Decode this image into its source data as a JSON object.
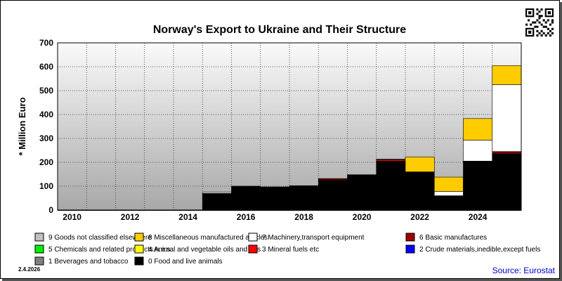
{
  "chart_data": {
    "type": "bar",
    "stacked": true,
    "title": "Norway's Export to Ukraine and Their Structure",
    "ylabel": "* Million Euro",
    "xlabel": "",
    "ylim": [
      0,
      700
    ],
    "yticks": [
      0,
      100,
      200,
      300,
      400,
      500,
      600,
      700
    ],
    "x_tick_labels": [
      "2010",
      "2012",
      "2014",
      "2016",
      "2018",
      "2020",
      "2022",
      "2024"
    ],
    "categories": [
      "2010",
      "2011",
      "2012",
      "2013",
      "2014",
      "2015",
      "2016",
      "2017",
      "2018",
      "2019",
      "2020",
      "2021",
      "2022",
      "2023",
      "2024",
      "2025"
    ],
    "series": [
      {
        "name": "0 Food and live animals",
        "color": "#000000",
        "values": [
          0,
          0,
          0,
          0,
          0,
          70,
          100,
          97,
          102,
          125,
          148,
          205,
          160,
          60,
          205,
          236
        ]
      },
      {
        "name": "3 Mineral fuels etc",
        "color": "#ff0000",
        "values": [
          0,
          0,
          0,
          0,
          0,
          0,
          0,
          0,
          0,
          3,
          0,
          5,
          0,
          0,
          0,
          4
        ]
      },
      {
        "name": "6 Basic manufactures",
        "color": "#a00000",
        "values": [
          0,
          0,
          0,
          0,
          0,
          0,
          0,
          0,
          0,
          4,
          0,
          3,
          0,
          0,
          0,
          5
        ]
      },
      {
        "name": "7 Machinery,transport equipment",
        "color": "#ffffff",
        "values": [
          0,
          0,
          0,
          0,
          0,
          5,
          0,
          0,
          0,
          0,
          0,
          0,
          0,
          18,
          88,
          280
        ]
      },
      {
        "name": "8 Miscellaneous manufactured articles",
        "color": "#ffcc00",
        "values": [
          0,
          0,
          0,
          0,
          0,
          0,
          0,
          0,
          0,
          0,
          0,
          0,
          62,
          60,
          90,
          80
        ]
      }
    ],
    "legend": [
      {
        "label": "9 Goods not classified elsewhere",
        "color": "#c0c0c0"
      },
      {
        "label": "8 Miscellaneous manufactured articles",
        "color": "#ffcc00"
      },
      {
        "label": "7 Machinery,transport equipment",
        "color": "#ffffff"
      },
      {
        "label": "6 Basic manufactures",
        "color": "#a00000"
      },
      {
        "label": "5 Chemicals and related products,n.e.s.",
        "color": "#00ee00"
      },
      {
        "label": "4 Animal and vegetable oils and fats",
        "color": "#ffff00"
      },
      {
        "label": "3 Mineral fuels etc",
        "color": "#ff0000"
      },
      {
        "label": "2 Crude materials,inedible,except fuels",
        "color": "#0000ff"
      },
      {
        "label": "1 Beverages and tobacco",
        "color": "#808080"
      },
      {
        "label": "0 Food and live animals",
        "color": "#000000"
      }
    ],
    "grid": true,
    "legend_placement": "bottom"
  },
  "footer": {
    "date": "2.4.2026",
    "source": "Source: Eurostat"
  },
  "icons": {
    "qr": "qr-code-icon"
  }
}
